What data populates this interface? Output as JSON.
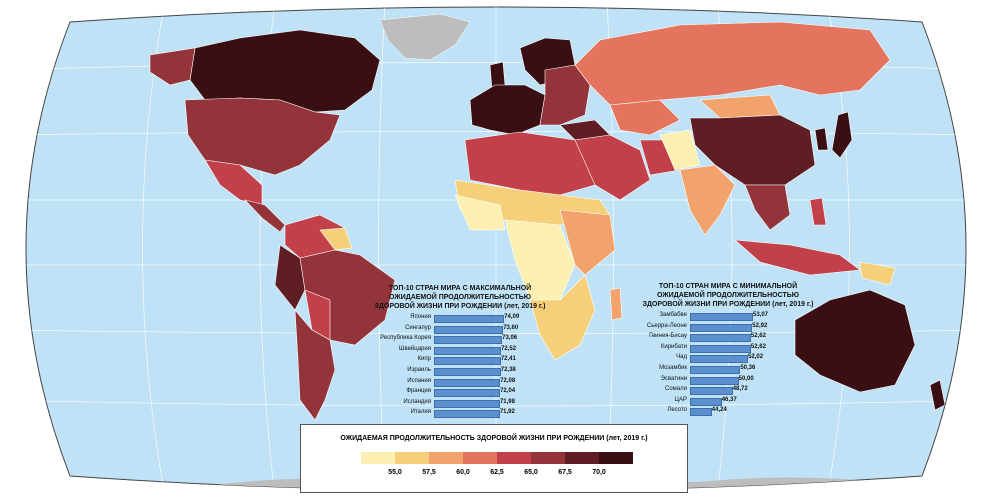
{
  "legend": {
    "title": "ОЖИДАЕМАЯ ПРОДОЛЖИТЕЛЬНОСТЬ ЗДОРОВОЙ ЖИЗНИ ПРИ РОЖДЕНИИ (лет, 2019 г.)",
    "colors": [
      "#fbefb1",
      "#f6cf7a",
      "#f2a26b",
      "#e4745e",
      "#c1404a",
      "#93333a",
      "#5e1e24",
      "#3a0f13"
    ],
    "ticks": [
      "55,0",
      "57,5",
      "60,0",
      "62,5",
      "65,0",
      "67,5",
      "70,0"
    ]
  },
  "top_max": {
    "title_lines": [
      "ТОП-10 СТРАН МИРА С МАКСИМАЛЬНОЙ",
      "ОЖИДАЕМОЙ ПРОДОЛЖИТЕЛЬНОСТЬЮ",
      "ЗДОРОВОЙ ЖИЗНИ ПРИ РОЖДЕНИИ (лет, 2019 г.)"
    ],
    "rows": [
      {
        "country": "Япония",
        "value": 74.09,
        "label": "74,09"
      },
      {
        "country": "Сингапур",
        "value": 73.6,
        "label": "73,60"
      },
      {
        "country": "Республика Корея",
        "value": 73.06,
        "label": "73,06"
      },
      {
        "country": "Швейцария",
        "value": 72.52,
        "label": "72,52"
      },
      {
        "country": "Кипр",
        "value": 72.41,
        "label": "72,41"
      },
      {
        "country": "Израиль",
        "value": 72.38,
        "label": "72,38"
      },
      {
        "country": "Испания",
        "value": 72.08,
        "label": "72,08"
      },
      {
        "country": "Франция",
        "value": 72.04,
        "label": "72,04"
      },
      {
        "country": "Исландия",
        "value": 71.98,
        "label": "71,98"
      },
      {
        "country": "Италия",
        "value": 71.92,
        "label": "71,92"
      }
    ]
  },
  "top_min": {
    "title_lines": [
      "ТОП-10 СТРАН МИРА С МИНИМАЛЬНОЙ",
      "ОЖИДАЕМОЙ ПРОДОЛЖИТЕЛЬНОСТЬЮ",
      "ЗДОРОВОЙ ЖИЗНИ ПРИ РОЖДЕНИИ (лет, 2019 г.)"
    ],
    "rows": [
      {
        "country": "Замбабве",
        "value": 53.07,
        "label": "53,07"
      },
      {
        "country": "Сьерра-Леоне",
        "value": 52.92,
        "label": "52,92"
      },
      {
        "country": "Гвинея-Бисау",
        "value": 52.62,
        "label": "52,62"
      },
      {
        "country": "Кирибати",
        "value": 52.62,
        "label": "52,62"
      },
      {
        "country": "Чад",
        "value": 52.02,
        "label": "52,02"
      },
      {
        "country": "Мозамбик",
        "value": 50.36,
        "label": "50,36"
      },
      {
        "country": "Эсватини",
        "value": 50.0,
        "label": "50,00"
      },
      {
        "country": "Сомали",
        "value": 48.72,
        "label": "48,72"
      },
      {
        "country": "ЦАР",
        "value": 46.37,
        "label": "46,37"
      },
      {
        "country": "Лесото",
        "value": 44.24,
        "label": "44,24"
      }
    ]
  }
}
